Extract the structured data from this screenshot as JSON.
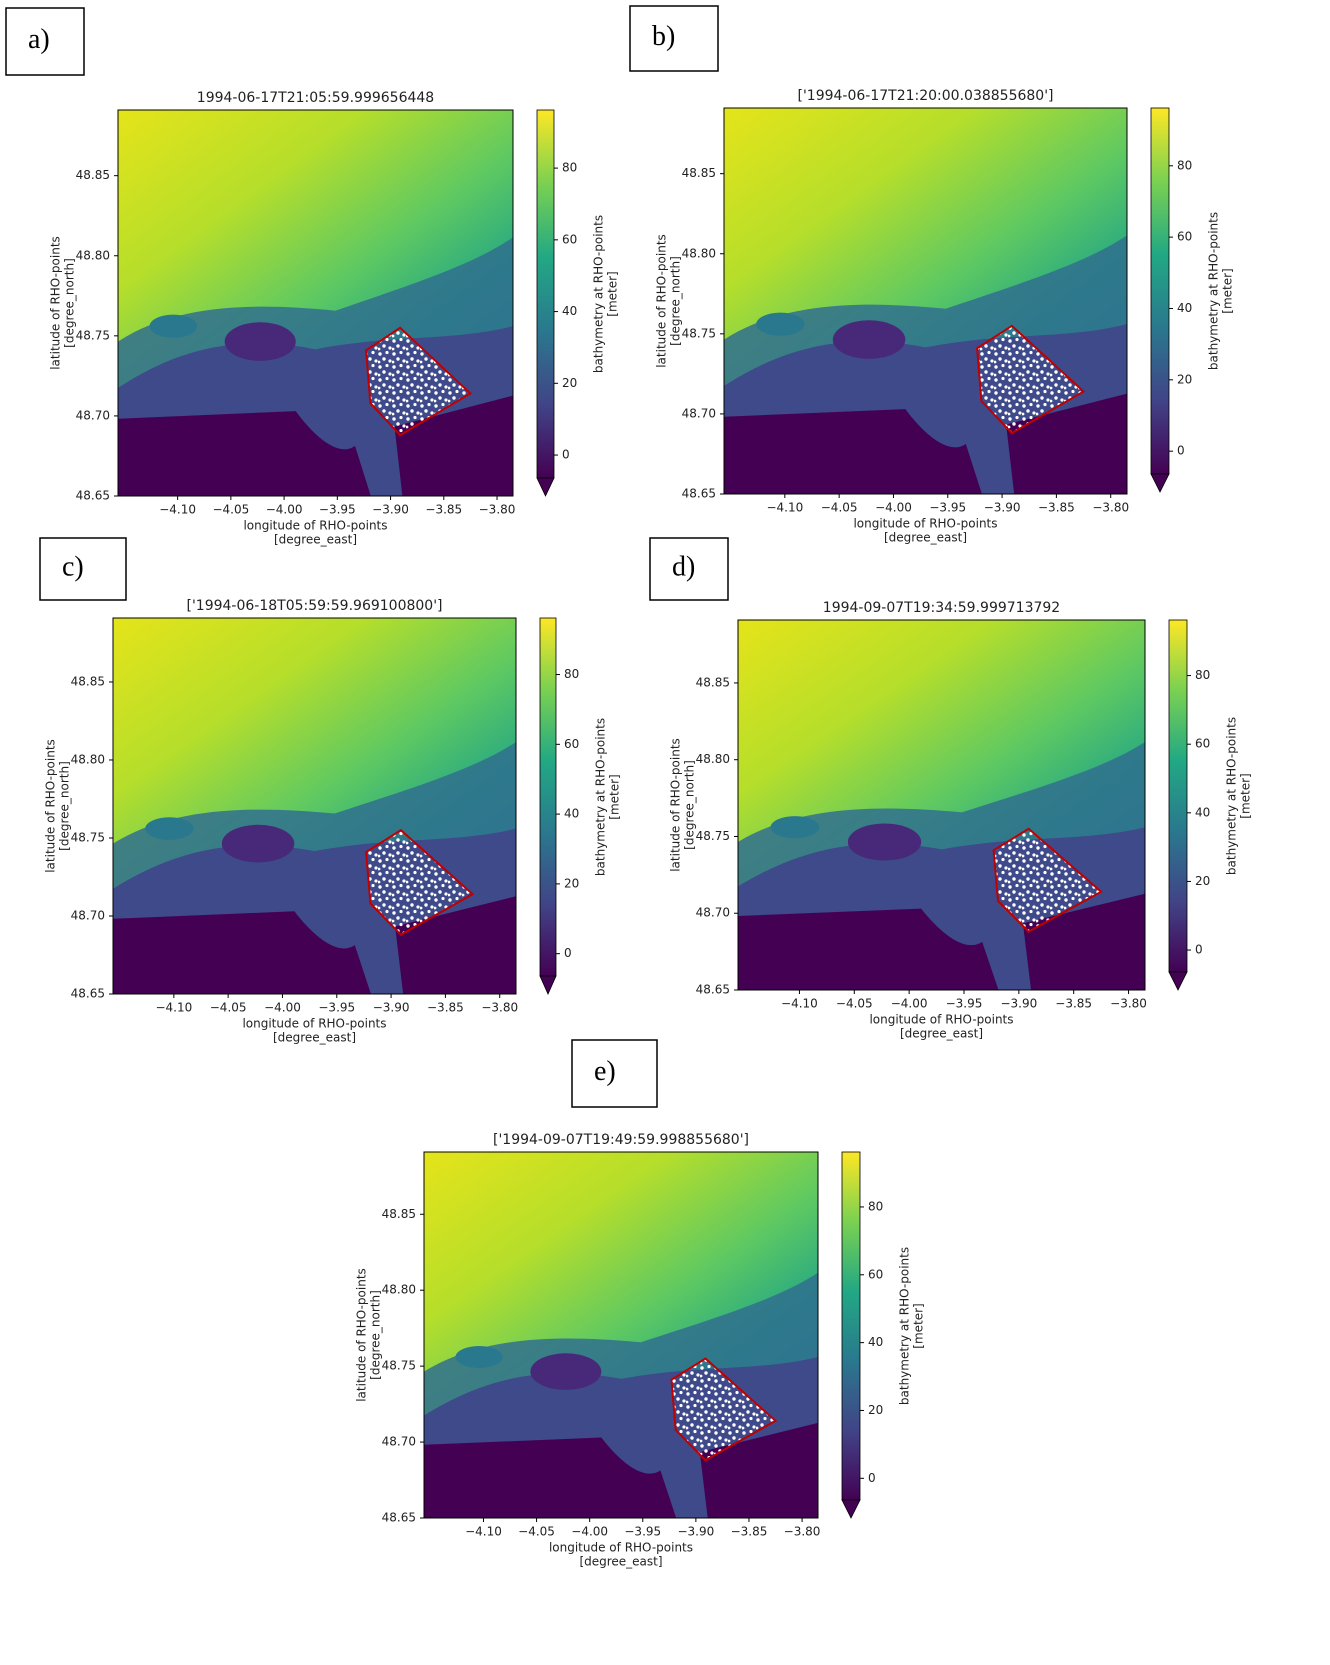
{
  "chart_data": [
    {
      "type": "heatmap",
      "panel_label": "a)",
      "title": "1994-06-17T21:05:59.999656448",
      "xlabel": [
        "longitude of RHO-points",
        "[degree_east]"
      ],
      "ylabel": [
        "latitude of RHO-points",
        "[degree_north]"
      ],
      "xlim": [
        -4.156,
        -3.785
      ],
      "ylim": [
        48.65,
        48.891
      ],
      "xticks": [
        {
          "value": -4.1,
          "label": "−4.10"
        },
        {
          "value": -4.05,
          "label": "−4.05"
        },
        {
          "value": -4.0,
          "label": "−4.00"
        },
        {
          "value": -3.95,
          "label": "−3.95"
        },
        {
          "value": -3.9,
          "label": "−3.90"
        },
        {
          "value": -3.85,
          "label": "−3.85"
        },
        {
          "value": -3.8,
          "label": "−3.80"
        }
      ],
      "yticks": [
        {
          "value": 48.65,
          "label": "48.65"
        },
        {
          "value": 48.7,
          "label": "48.70"
        },
        {
          "value": 48.75,
          "label": "48.75"
        },
        {
          "value": 48.8,
          "label": "48.80"
        },
        {
          "value": 48.85,
          "label": "48.85"
        }
      ],
      "colorbar": {
        "label": [
          "bathymetry at RHO-points",
          "[meter]"
        ],
        "lim": [
          -6.4,
          96.2
        ],
        "ticks": [
          0,
          20,
          40,
          60,
          80
        ],
        "extend": "min"
      },
      "polygon": {
        "color": "#c00000",
        "lon": [
          -3.891,
          -3.825,
          -3.891,
          -3.919,
          -3.923
        ],
        "lat": [
          48.755,
          48.714,
          48.688,
          48.708,
          48.741
        ]
      }
    },
    {
      "type": "heatmap",
      "panel_label": "b)",
      "title": "['1994-06-17T21:20:00.038855680']",
      "xlabel": [
        "longitude of RHO-points",
        "[degree_east]"
      ],
      "ylabel": [
        "latitude of RHO-points",
        "[degree_north]"
      ],
      "xlim": [
        -4.156,
        -3.785
      ],
      "ylim": [
        48.65,
        48.891
      ],
      "xticks": [
        {
          "value": -4.1,
          "label": "−4.10"
        },
        {
          "value": -4.05,
          "label": "−4.05"
        },
        {
          "value": -4.0,
          "label": "−4.00"
        },
        {
          "value": -3.95,
          "label": "−3.95"
        },
        {
          "value": -3.9,
          "label": "−3.90"
        },
        {
          "value": -3.85,
          "label": "−3.85"
        },
        {
          "value": -3.8,
          "label": "−3.80"
        }
      ],
      "yticks": [
        {
          "value": 48.65,
          "label": "48.65"
        },
        {
          "value": 48.7,
          "label": "48.70"
        },
        {
          "value": 48.75,
          "label": "48.75"
        },
        {
          "value": 48.8,
          "label": "48.80"
        },
        {
          "value": 48.85,
          "label": "48.85"
        }
      ],
      "colorbar": {
        "label": [
          "bathymetry at RHO-points",
          "[meter]"
        ],
        "lim": [
          -6.4,
          96.2
        ],
        "ticks": [
          0,
          20,
          40,
          60,
          80
        ],
        "extend": "min"
      },
      "polygon": {
        "color": "#c00000",
        "lon": [
          -3.891,
          -3.825,
          -3.891,
          -3.919,
          -3.923
        ],
        "lat": [
          48.755,
          48.714,
          48.688,
          48.708,
          48.741
        ]
      }
    },
    {
      "type": "heatmap",
      "panel_label": "c)",
      "title": "['1994-06-18T05:59:59.969100800']",
      "xlabel": [
        "longitude of RHO-points",
        "[degree_east]"
      ],
      "ylabel": [
        "latitude of RHO-points",
        "[degree_north]"
      ],
      "xlim": [
        -4.156,
        -3.785
      ],
      "ylim": [
        48.65,
        48.891
      ],
      "xticks": [
        {
          "value": -4.1,
          "label": "−4.10"
        },
        {
          "value": -4.05,
          "label": "−4.05"
        },
        {
          "value": -4.0,
          "label": "−4.00"
        },
        {
          "value": -3.95,
          "label": "−3.95"
        },
        {
          "value": -3.9,
          "label": "−3.90"
        },
        {
          "value": -3.85,
          "label": "−3.85"
        },
        {
          "value": -3.8,
          "label": "−3.80"
        }
      ],
      "yticks": [
        {
          "value": 48.65,
          "label": "48.65"
        },
        {
          "value": 48.7,
          "label": "48.70"
        },
        {
          "value": 48.75,
          "label": "48.75"
        },
        {
          "value": 48.8,
          "label": "48.80"
        },
        {
          "value": 48.85,
          "label": "48.85"
        }
      ],
      "colorbar": {
        "label": [
          "bathymetry at RHO-points",
          "[meter]"
        ],
        "lim": [
          -6.4,
          96.2
        ],
        "ticks": [
          0,
          20,
          40,
          60,
          80
        ],
        "extend": "min"
      },
      "polygon": {
        "color": "#c00000",
        "lon": [
          -3.891,
          -3.825,
          -3.891,
          -3.919,
          -3.923
        ],
        "lat": [
          48.755,
          48.714,
          48.688,
          48.708,
          48.741
        ]
      }
    },
    {
      "type": "heatmap",
      "panel_label": "d)",
      "title": "1994-09-07T19:34:59.999713792",
      "xlabel": [
        "longitude of RHO-points",
        "[degree_east]"
      ],
      "ylabel": [
        "latitude of RHO-points",
        "[degree_north]"
      ],
      "xlim": [
        -4.156,
        -3.785
      ],
      "ylim": [
        48.65,
        48.891
      ],
      "xticks": [
        {
          "value": -4.1,
          "label": "−4.10"
        },
        {
          "value": -4.05,
          "label": "−4.05"
        },
        {
          "value": -4.0,
          "label": "−4.00"
        },
        {
          "value": -3.95,
          "label": "−3.95"
        },
        {
          "value": -3.9,
          "label": "−3.90"
        },
        {
          "value": -3.85,
          "label": "−3.85"
        },
        {
          "value": -3.8,
          "label": "−3.80"
        }
      ],
      "yticks": [
        {
          "value": 48.65,
          "label": "48.65"
        },
        {
          "value": 48.7,
          "label": "48.70"
        },
        {
          "value": 48.75,
          "label": "48.75"
        },
        {
          "value": 48.8,
          "label": "48.80"
        },
        {
          "value": 48.85,
          "label": "48.85"
        }
      ],
      "colorbar": {
        "label": [
          "bathymetry at RHO-points",
          "[meter]"
        ],
        "lim": [
          -6.4,
          96.2
        ],
        "ticks": [
          0,
          20,
          40,
          60,
          80
        ],
        "extend": "min"
      },
      "polygon": {
        "color": "#c00000",
        "lon": [
          -3.891,
          -3.825,
          -3.891,
          -3.919,
          -3.923
        ],
        "lat": [
          48.755,
          48.714,
          48.688,
          48.708,
          48.741
        ]
      }
    },
    {
      "type": "heatmap",
      "panel_label": "e)",
      "title": "['1994-09-07T19:49:59.998855680']",
      "xlabel": [
        "longitude of RHO-points",
        "[degree_east]"
      ],
      "ylabel": [
        "latitude of RHO-points",
        "[degree_north]"
      ],
      "xlim": [
        -4.156,
        -3.785
      ],
      "ylim": [
        48.65,
        48.891
      ],
      "xticks": [
        {
          "value": -4.1,
          "label": "−4.10"
        },
        {
          "value": -4.05,
          "label": "−4.05"
        },
        {
          "value": -4.0,
          "label": "−4.00"
        },
        {
          "value": -3.95,
          "label": "−3.95"
        },
        {
          "value": -3.9,
          "label": "−3.90"
        },
        {
          "value": -3.85,
          "label": "−3.85"
        },
        {
          "value": -3.8,
          "label": "−3.80"
        }
      ],
      "yticks": [
        {
          "value": 48.65,
          "label": "48.65"
        },
        {
          "value": 48.7,
          "label": "48.70"
        },
        {
          "value": 48.75,
          "label": "48.75"
        },
        {
          "value": 48.8,
          "label": "48.80"
        },
        {
          "value": 48.85,
          "label": "48.85"
        }
      ],
      "colorbar": {
        "label": [
          "bathymetry at RHO-points",
          "[meter]"
        ],
        "lim": [
          -6.4,
          96.2
        ],
        "ticks": [
          0,
          20,
          40,
          60,
          80
        ],
        "extend": "min"
      },
      "polygon": {
        "color": "#c00000",
        "lon": [
          -3.891,
          -3.825,
          -3.891,
          -3.919,
          -3.923
        ],
        "lat": [
          48.755,
          48.714,
          48.688,
          48.708,
          48.741
        ]
      }
    }
  ]
}
